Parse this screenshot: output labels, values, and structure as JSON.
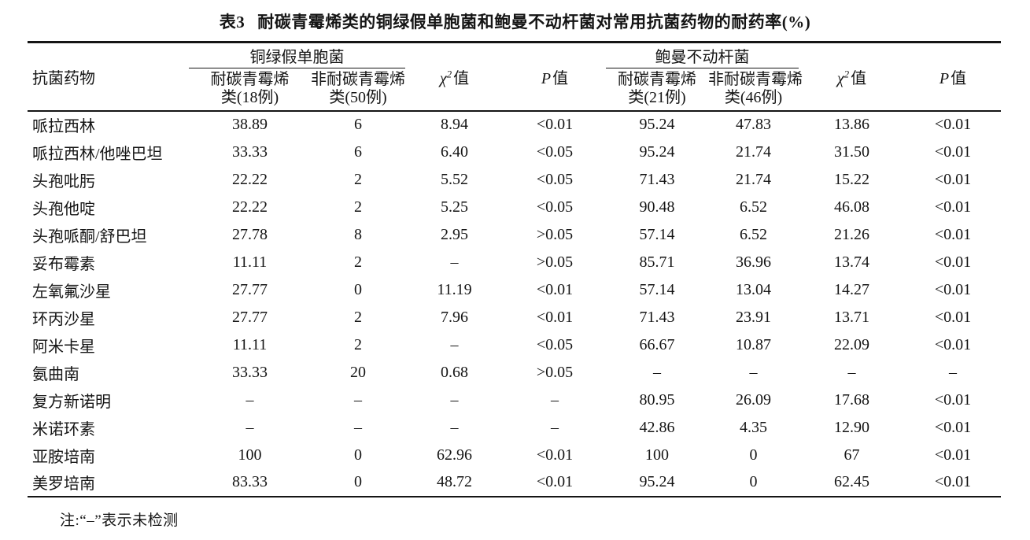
{
  "colors": {
    "background": "#ffffff",
    "text": "#151515",
    "rule": "#151515"
  },
  "title": {
    "tag": "表3",
    "text": "耐碳青霉烯类的铜绿假单胞菌和鲍曼不动杆菌对常用抗菌药物的耐药率(%)"
  },
  "header": {
    "drug": "抗菌药物",
    "group1": {
      "name": "铜绿假单胞菌",
      "cols": [
        {
          "line1": "耐碳青霉烯",
          "line2": "类(18例)"
        },
        {
          "line1": "非耐碳青霉烯",
          "line2": "类(50例)"
        }
      ]
    },
    "group2": {
      "name": "鲍曼不动杆菌",
      "cols": [
        {
          "line1": "耐碳青霉烯",
          "line2": "类(21例)"
        },
        {
          "line1": "非耐碳青霉烯",
          "line2": "类(46例)"
        }
      ]
    },
    "chi": {
      "symbol": "χ",
      "sup": "2",
      "suffix": "值"
    },
    "p": {
      "symbol": "P",
      "suffix": "值"
    }
  },
  "table": {
    "rows": [
      [
        "哌拉西林",
        "38.89",
        "6",
        "8.94",
        "<0.01",
        "95.24",
        "47.83",
        "13.86",
        "<0.01"
      ],
      [
        "哌拉西林/他唑巴坦",
        "33.33",
        "6",
        "6.40",
        "<0.05",
        "95.24",
        "21.74",
        "31.50",
        "<0.01"
      ],
      [
        "头孢吡肟",
        "22.22",
        "2",
        "5.52",
        "<0.05",
        "71.43",
        "21.74",
        "15.22",
        "<0.01"
      ],
      [
        "头孢他啶",
        "22.22",
        "2",
        "5.25",
        "<0.05",
        "90.48",
        "6.52",
        "46.08",
        "<0.01"
      ],
      [
        "头孢哌酮/舒巴坦",
        "27.78",
        "8",
        "2.95",
        ">0.05",
        "57.14",
        "6.52",
        "21.26",
        "<0.01"
      ],
      [
        "妥布霉素",
        "11.11",
        "2",
        "–",
        ">0.05",
        "85.71",
        "36.96",
        "13.74",
        "<0.01"
      ],
      [
        "左氧氟沙星",
        "27.77",
        "0",
        "11.19",
        "<0.01",
        "57.14",
        "13.04",
        "14.27",
        "<0.01"
      ],
      [
        "环丙沙星",
        "27.77",
        "2",
        "7.96",
        "<0.01",
        "71.43",
        "23.91",
        "13.71",
        "<0.01"
      ],
      [
        "阿米卡星",
        "11.11",
        "2",
        "–",
        "<0.05",
        "66.67",
        "10.87",
        "22.09",
        "<0.01"
      ],
      [
        "氨曲南",
        "33.33",
        "20",
        "0.68",
        ">0.05",
        "–",
        "–",
        "–",
        "–"
      ],
      [
        "复方新诺明",
        "–",
        "–",
        "–",
        "–",
        "80.95",
        "26.09",
        "17.68",
        "<0.01"
      ],
      [
        "米诺环素",
        "–",
        "–",
        "–",
        "–",
        "42.86",
        "4.35",
        "12.90",
        "<0.01"
      ],
      [
        "亚胺培南",
        "100",
        "0",
        "62.96",
        "<0.01",
        "100",
        "0",
        "67",
        "<0.01"
      ],
      [
        "美罗培南",
        "83.33",
        "0",
        "48.72",
        "<0.01",
        "95.24",
        "0",
        "62.45",
        "<0.01"
      ]
    ]
  },
  "note": "注:“–”表示未检测"
}
